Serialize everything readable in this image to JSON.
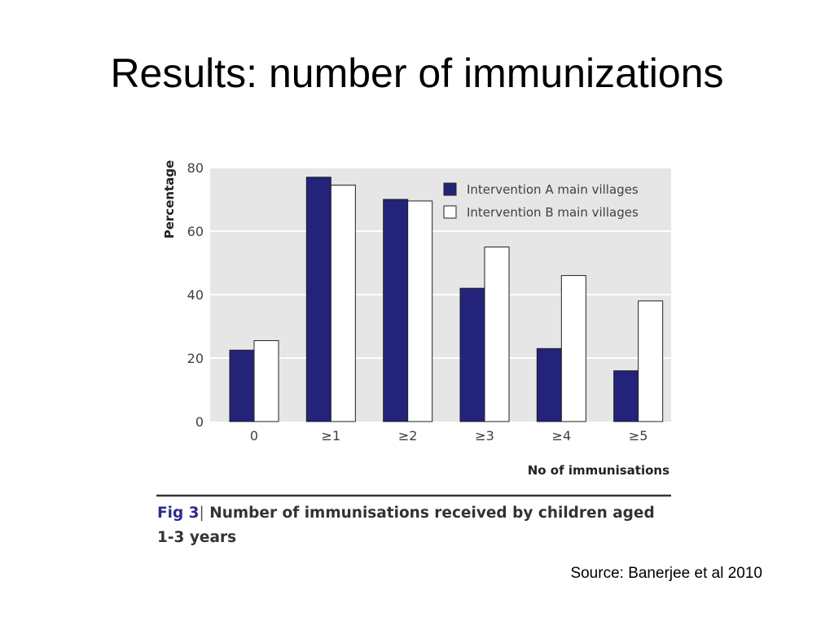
{
  "slide": {
    "title": "Results: number of immunizations",
    "source": "Source: Banerjee et al 2010"
  },
  "caption": {
    "fig_label": "Fig 3",
    "separator": "|",
    "text": " Number of immunisations received by children aged 1-3 years"
  },
  "colors": {
    "series_a": "#23237a",
    "series_b": "#ffffff",
    "plot_bg": "#e6e6e6",
    "gridline": "#ffffff"
  },
  "chart_data": {
    "type": "bar",
    "categories": [
      "0",
      "≥1",
      "≥2",
      "≥3",
      "≥4",
      "≥5"
    ],
    "series": [
      {
        "name": "Intervention A main villages",
        "values": [
          22.5,
          77,
          70,
          42,
          23,
          16
        ]
      },
      {
        "name": "Intervention B main villages",
        "values": [
          25.5,
          74.5,
          69.5,
          55,
          46,
          38
        ]
      }
    ],
    "title": "",
    "xlabel": "No of immunisations",
    "ylabel": "Percentage",
    "ylim": [
      0,
      80
    ],
    "yticks": [
      0,
      20,
      40,
      60,
      80
    ],
    "grid": true,
    "legend_position": "top-right"
  }
}
